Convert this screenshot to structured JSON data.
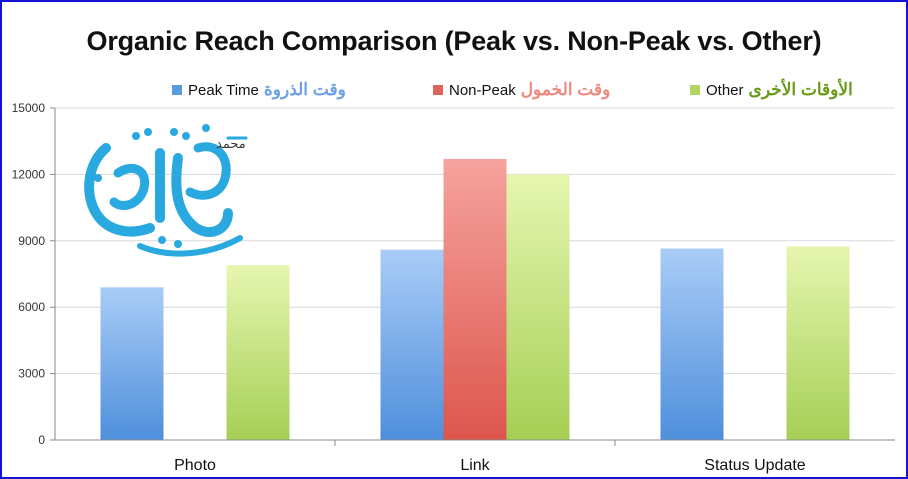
{
  "colors": {
    "frame": "#1414d8",
    "peak": "#5a9ae0",
    "nonpeak": "#e0635a",
    "other": "#b0d560",
    "peak_ar_text": "#6f9fe6",
    "nonpeak_ar_text": "#f08a80",
    "other_ar_text": "#6a9a1a",
    "logo": "#2aa8e0"
  },
  "chart_data": {
    "type": "bar",
    "title": "Organic Reach Comparison (Peak vs. Non-Peak vs. Other)",
    "categories": [
      "Photo",
      "Link",
      "Status Update"
    ],
    "series": [
      {
        "name": "Peak Time",
        "name_ar": "وقت الذروة",
        "color": "#5a9ae0",
        "values": [
          6900,
          8600,
          8650
        ]
      },
      {
        "name": "Non-Peak",
        "name_ar": "وقت الخمول",
        "color": "#e0635a",
        "values": [
          null,
          12700,
          null
        ]
      },
      {
        "name": "Other",
        "name_ar": "الأوقات الأخرى",
        "color": "#b0d560",
        "values": [
          7900,
          12000,
          8750
        ]
      }
    ],
    "ylim": [
      0,
      15000
    ],
    "yticks": [
      0,
      3000,
      6000,
      9000,
      12000,
      15000
    ],
    "grid": true,
    "legend_position": "top"
  },
  "logo": {
    "icon": "arabic-calligraphy-logo",
    "text_small": "محمد"
  }
}
